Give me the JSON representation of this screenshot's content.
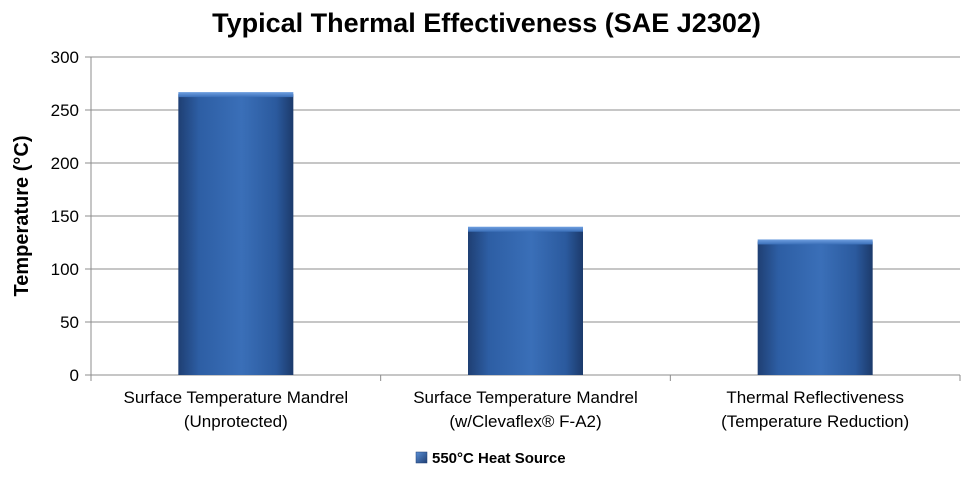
{
  "chart_data": {
    "type": "bar",
    "title": "Typical Thermal Effectiveness (SAE J2302)",
    "ylabel": "Temperature (°C)",
    "xlabel": "",
    "ylim": [
      0,
      300
    ],
    "yticks": [
      0,
      50,
      100,
      150,
      200,
      250,
      300
    ],
    "categories": [
      [
        "Surface Temperature Mandrel",
        "(Unprotected)"
      ],
      [
        "Surface Temperature Mandrel",
        "(w/Clevaflex® F-A2)"
      ],
      [
        "Thermal Reflectiveness",
        "(Temperature Reduction)"
      ]
    ],
    "series": [
      {
        "name": "550°C Heat Source",
        "values": [
          265,
          138,
          126
        ],
        "color": "#3a6db5"
      }
    ],
    "grid": true,
    "legend_position": "bottom-center"
  }
}
